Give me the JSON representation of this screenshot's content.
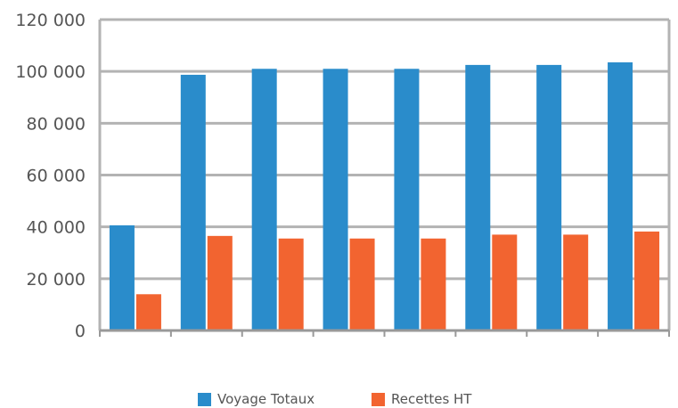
{
  "chart_data": {
    "type": "bar",
    "title": "",
    "xlabel": "",
    "ylabel": "",
    "categories": [
      "",
      "",
      "",
      "",
      "",
      "",
      "",
      ""
    ],
    "series": [
      {
        "name": "Voyage Totaux",
        "color": "#2a8ccb",
        "values": [
          40600,
          98700,
          101000,
          101000,
          101000,
          102500,
          102500,
          103500
        ]
      },
      {
        "name": "Recettes HT",
        "color": "#f26430",
        "values": [
          14000,
          36500,
          35500,
          35500,
          35500,
          37000,
          37000,
          38200
        ]
      }
    ],
    "ylim": [
      0,
      120000
    ],
    "yticks": [
      {
        "value": 0,
        "label": "0"
      },
      {
        "value": 20000,
        "label": "20 000"
      },
      {
        "value": 40000,
        "label": "40 000"
      },
      {
        "value": 60000,
        "label": "60 000"
      },
      {
        "value": 80000,
        "label": "80 000"
      },
      {
        "value": 100000,
        "label": "100 000"
      },
      {
        "value": 120000,
        "label": "120 000"
      }
    ],
    "grid": true,
    "legend_position": "bottom",
    "gridline_color": "#b3b3b3"
  }
}
